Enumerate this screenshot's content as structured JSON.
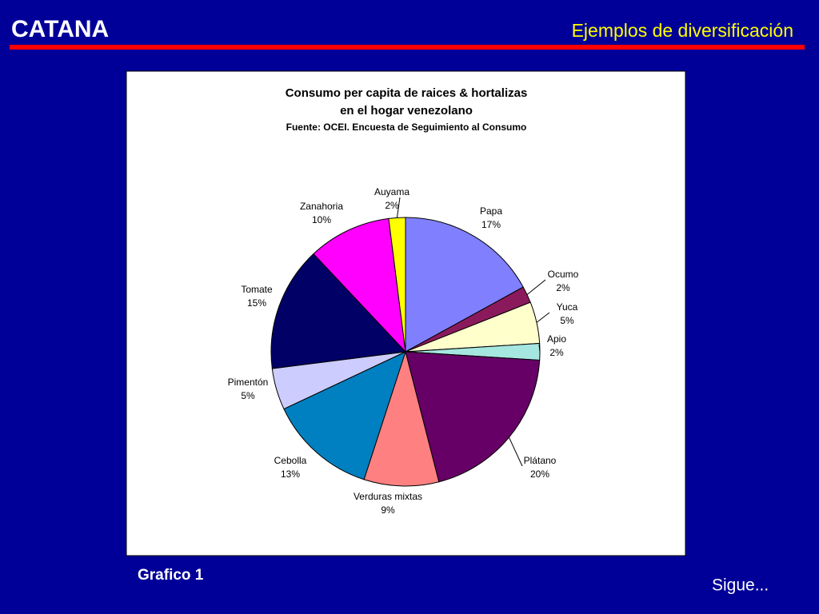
{
  "header": {
    "brand": "CATANA",
    "title": "Ejemplos de diversificación"
  },
  "chart_data": {
    "type": "pie",
    "title": [
      "Consumo per capita de raices & hortalizas",
      "en el hogar venezolano"
    ],
    "subtitle": "Fuente: OCEI. Encuesta de Seguimiento al Consumo",
    "categories": [
      "Papa",
      "Ocumo",
      "Yuca",
      "Apio",
      "Plátano",
      "Verduras mixtas",
      "Cebolla",
      "Pimentón",
      "Tomate",
      "Zanahoria",
      "Auyama"
    ],
    "values": [
      17,
      2,
      5,
      2,
      20,
      9,
      13,
      5,
      15,
      10,
      2
    ],
    "value_labels": [
      "17%",
      "2%",
      "5%",
      "2%",
      "20%",
      "9%",
      "13%",
      "5%",
      "15%",
      "10%",
      "2%"
    ],
    "colors": [
      "#8080ff",
      "#8b1a5c",
      "#ffffcc",
      "#a6e6e0",
      "#660066",
      "#ff8080",
      "#0080c0",
      "#ccccff",
      "#000066",
      "#ff00ff",
      "#ffff00"
    ]
  },
  "footer": {
    "caption": "Grafico 1",
    "next": "Sigue..."
  }
}
